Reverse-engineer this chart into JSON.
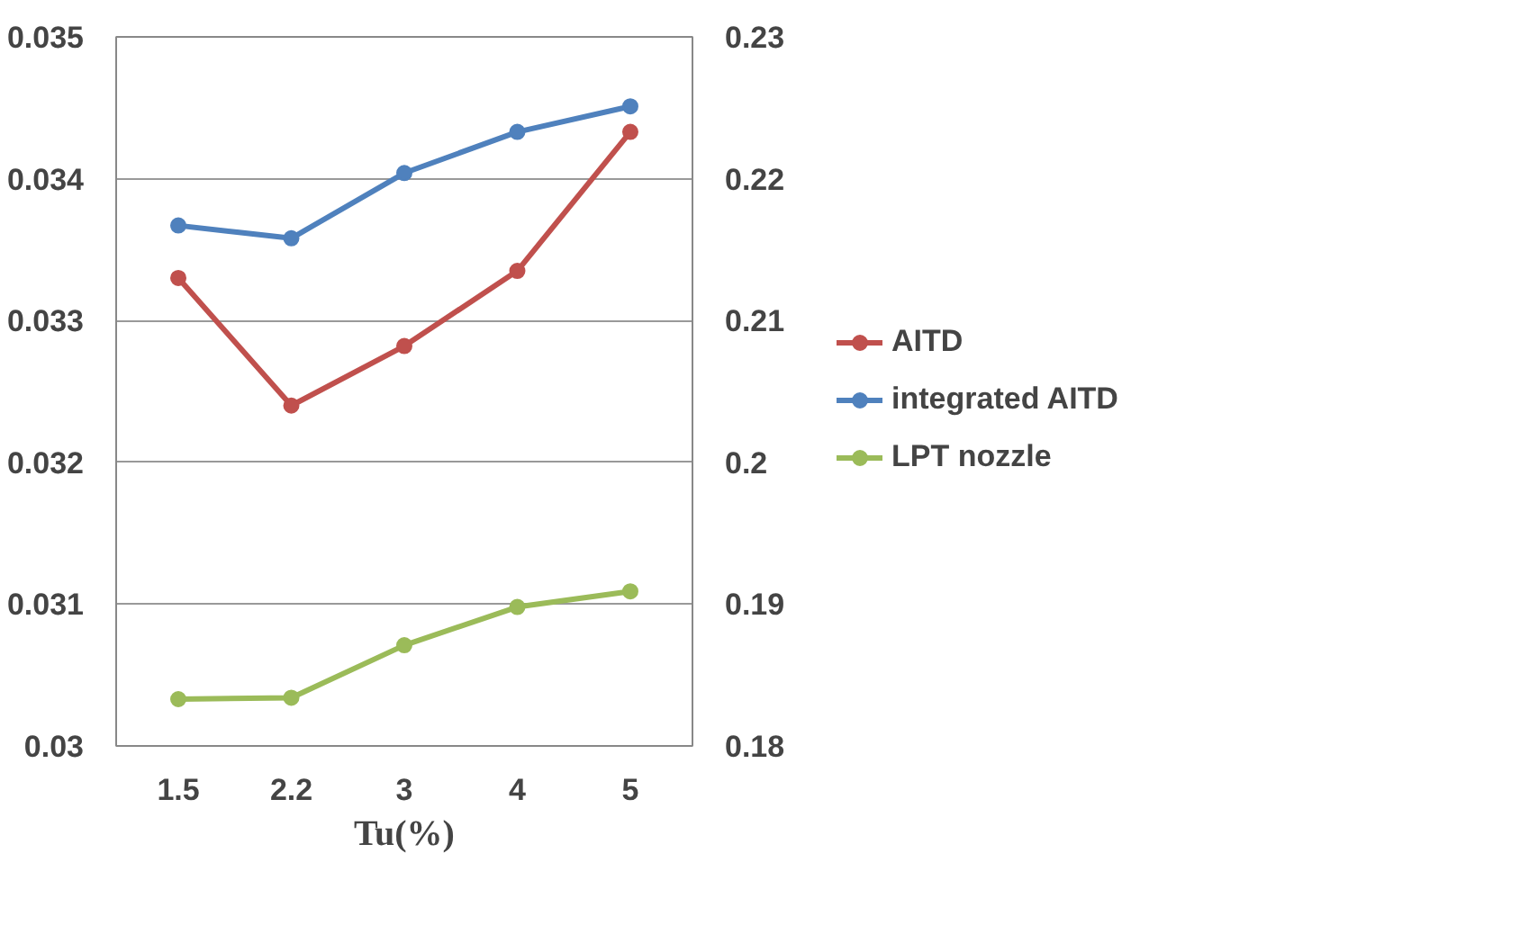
{
  "chart_data": {
    "type": "line",
    "xlabel": "Tu(%)",
    "categories": [
      "1.5",
      "2.2",
      "3",
      "4",
      "5"
    ],
    "series": [
      {
        "name": "AITD",
        "color": "#c0504d",
        "values": [
          0.0333,
          0.0324,
          0.03282,
          0.03335,
          0.03433
        ]
      },
      {
        "name": "integrated AITD",
        "color": "#4f81bd",
        "values": [
          0.2167,
          0.2158,
          0.2204,
          0.2233,
          0.2251
        ],
        "axis": "y2"
      },
      {
        "name": "LPT nozzle",
        "color": "#9bbb59",
        "values": [
          0.1833,
          0.1834,
          0.1871,
          0.1898,
          0.1909
        ],
        "axis": "y2"
      }
    ],
    "ylim": [
      0.03,
      0.035
    ],
    "yticks": [
      {
        "value": 0.03,
        "label": "0.03"
      },
      0.031,
      0.032,
      0.033,
      0.034,
      0.035
    ],
    "y2lim": [
      0.18,
      0.23
    ],
    "y2ticks": [
      0.18,
      0.19,
      {
        "value": 0.2,
        "label": "0.2"
      },
      0.21,
      0.22,
      0.23
    ],
    "grid": "y",
    "legend": "right",
    "marker": "circle",
    "line_style": "solid"
  }
}
